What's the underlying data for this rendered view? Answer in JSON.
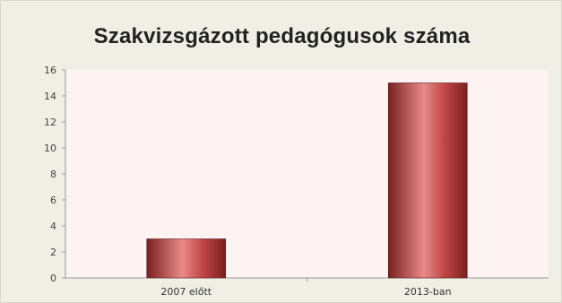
{
  "chart_data": {
    "type": "bar",
    "title": "Szakvizsgázott pedagógusok száma",
    "categories": [
      "2007 előtt",
      "2013-ban"
    ],
    "values": [
      3,
      15
    ],
    "yticks": [
      "0",
      "2",
      "4",
      "6",
      "8",
      "10",
      "12",
      "14",
      "16"
    ],
    "ylim": [
      0,
      16
    ],
    "grid": false,
    "legend": false,
    "colors": {
      "bar_dark": "#7a1f1f",
      "bar_mid": "#c34848",
      "bar_light": "#e88a8a",
      "plot_background": "#fdf3f3",
      "outer_background": "#efefe6"
    }
  }
}
